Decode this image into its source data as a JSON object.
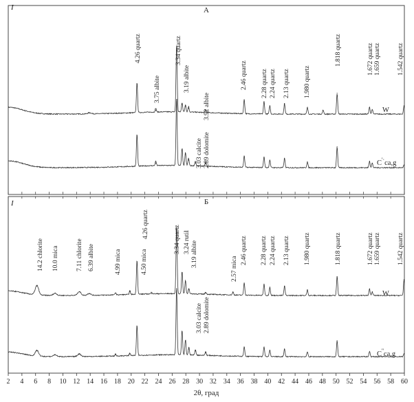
{
  "chart_data": {
    "type": "line",
    "title": "",
    "xlabel": "2θ, град",
    "ylabel": "I",
    "xlim": [
      2,
      60
    ],
    "xticks": [
      2,
      4,
      6,
      8,
      10,
      12,
      14,
      16,
      18,
      20,
      22,
      24,
      26,
      28,
      30,
      32,
      34,
      36,
      38,
      40,
      42,
      44,
      46,
      48,
      50,
      52,
      54,
      56,
      58,
      60
    ],
    "panels": [
      {
        "title": "A",
        "ylabel": "I",
        "series": [
          {
            "name": "W",
            "peaks": [
              {
                "x": 13.9,
                "y": 0.03
              },
              {
                "x": 20.85,
                "y": 0.8
              },
              {
                "x": 23.6,
                "y": 0.1
              },
              {
                "x": 26.65,
                "y": 1.8
              },
              {
                "x": 27.45,
                "y": 0.25
              },
              {
                "x": 27.95,
                "y": 0.2
              },
              {
                "x": 28.4,
                "y": 0.15
              },
              {
                "x": 30.9,
                "y": 0.07
              },
              {
                "x": 36.55,
                "y": 0.38
              },
              {
                "x": 39.45,
                "y": 0.33
              },
              {
                "x": 40.3,
                "y": 0.22
              },
              {
                "x": 42.45,
                "y": 0.28
              },
              {
                "x": 45.8,
                "y": 0.17
              },
              {
                "x": 48.1,
                "y": 0.1
              },
              {
                "x": 50.15,
                "y": 0.55
              },
              {
                "x": 54.9,
                "y": 0.18
              },
              {
                "x": 55.3,
                "y": 0.12
              },
              {
                "x": 59.95,
                "y": 0.22
              }
            ]
          },
          {
            "name": "C",
            "peaks": [
              {
                "x": 20.85,
                "y": 0.85
              },
              {
                "x": 23.6,
                "y": 0.12
              },
              {
                "x": 26.65,
                "y": 1.8
              },
              {
                "x": 27.45,
                "y": 0.45
              },
              {
                "x": 27.95,
                "y": 0.35
              },
              {
                "x": 28.4,
                "y": 0.2
              },
              {
                "x": 29.4,
                "y": 0.12
              },
              {
                "x": 30.9,
                "y": 0.1
              },
              {
                "x": 36.55,
                "y": 0.3
              },
              {
                "x": 39.45,
                "y": 0.28
              },
              {
                "x": 40.3,
                "y": 0.2
              },
              {
                "x": 42.45,
                "y": 0.25
              },
              {
                "x": 45.8,
                "y": 0.15
              },
              {
                "x": 50.15,
                "y": 0.55
              },
              {
                "x": 54.9,
                "y": 0.17
              },
              {
                "x": 55.3,
                "y": 0.12
              },
              {
                "x": 59.95,
                "y": 0.07
              }
            ]
          }
        ],
        "annotations": [
          "4.26 quartz",
          "3.75 albite",
          "3.34 quartz",
          "3.19 albite",
          "3.92 albite",
          "3.03 calcite",
          "2.89 dolomite",
          "2.46 quartz",
          "2.28 quartz",
          "2.24 quartz",
          "2.13 quartz",
          "1.980 quartz",
          "1.818 quartz",
          "1.672 quartz",
          "1.659 quartz",
          "1.542 quartz"
        ],
        "trace_labels": {
          "top": "W",
          "bottom_prefix": "C",
          "bottom_sup": "'·",
          "bottom_sub": "ca,g"
        }
      },
      {
        "title": "Б",
        "ylabel": "I",
        "series": [
          {
            "name": "W",
            "peaks": [
              {
                "x": 6.2,
                "y": 0.25
              },
              {
                "x": 8.85,
                "y": 0.06
              },
              {
                "x": 12.4,
                "y": 0.1
              },
              {
                "x": 13.85,
                "y": 0.05
              },
              {
                "x": 17.7,
                "y": 0.06
              },
              {
                "x": 19.8,
                "y": 0.1
              },
              {
                "x": 20.85,
                "y": 0.9
              },
              {
                "x": 23.0,
                "y": 0.05
              },
              {
                "x": 26.65,
                "y": 1.8
              },
              {
                "x": 27.45,
                "y": 0.6
              },
              {
                "x": 27.95,
                "y": 0.35
              },
              {
                "x": 28.45,
                "y": 0.15
              },
              {
                "x": 30.9,
                "y": 0.06
              },
              {
                "x": 34.9,
                "y": 0.08
              },
              {
                "x": 36.55,
                "y": 0.33
              },
              {
                "x": 39.45,
                "y": 0.3
              },
              {
                "x": 40.3,
                "y": 0.22
              },
              {
                "x": 42.45,
                "y": 0.25
              },
              {
                "x": 45.8,
                "y": 0.15
              },
              {
                "x": 50.15,
                "y": 0.5
              },
              {
                "x": 54.9,
                "y": 0.17
              },
              {
                "x": 55.3,
                "y": 0.1
              },
              {
                "x": 59.95,
                "y": 0.42
              }
            ]
          },
          {
            "name": "C",
            "peaks": [
              {
                "x": 6.2,
                "y": 0.15
              },
              {
                "x": 8.85,
                "y": 0.05
              },
              {
                "x": 12.4,
                "y": 0.07
              },
              {
                "x": 17.7,
                "y": 0.05
              },
              {
                "x": 19.8,
                "y": 0.07
              },
              {
                "x": 20.85,
                "y": 0.8
              },
              {
                "x": 26.65,
                "y": 1.8
              },
              {
                "x": 27.45,
                "y": 0.65
              },
              {
                "x": 27.95,
                "y": 0.4
              },
              {
                "x": 28.45,
                "y": 0.2
              },
              {
                "x": 29.4,
                "y": 0.15
              },
              {
                "x": 30.9,
                "y": 0.1
              },
              {
                "x": 36.55,
                "y": 0.25
              },
              {
                "x": 39.45,
                "y": 0.25
              },
              {
                "x": 40.3,
                "y": 0.17
              },
              {
                "x": 42.45,
                "y": 0.2
              },
              {
                "x": 45.8,
                "y": 0.12
              },
              {
                "x": 50.15,
                "y": 0.42
              },
              {
                "x": 54.9,
                "y": 0.14
              },
              {
                "x": 59.95,
                "y": 0.08
              }
            ]
          }
        ],
        "annotations": [
          "14.2 chlorite",
          "10.0 mica",
          "7.11 chlorite",
          "6.39 albite",
          "4.99 mica",
          "4.50 mica",
          "4.26 quartz",
          "3.34 quartz",
          "3.24 rutil",
          "3.19 albite",
          "3.03 calcite",
          "2.89 dolomite",
          "2.57 mica",
          "2.46 quartz",
          "2.28 quartz",
          "2.24 quartz",
          "2.13 quartz",
          "1.980 quartz",
          "1.818 quartz",
          "1.672 quartz",
          "1.659 quartz",
          "1.542 quartz"
        ],
        "trace_labels": {
          "top": "W",
          "bottom_prefix": "C",
          "bottom_sup": "''",
          "bottom_sub": "ca,g"
        }
      }
    ]
  }
}
